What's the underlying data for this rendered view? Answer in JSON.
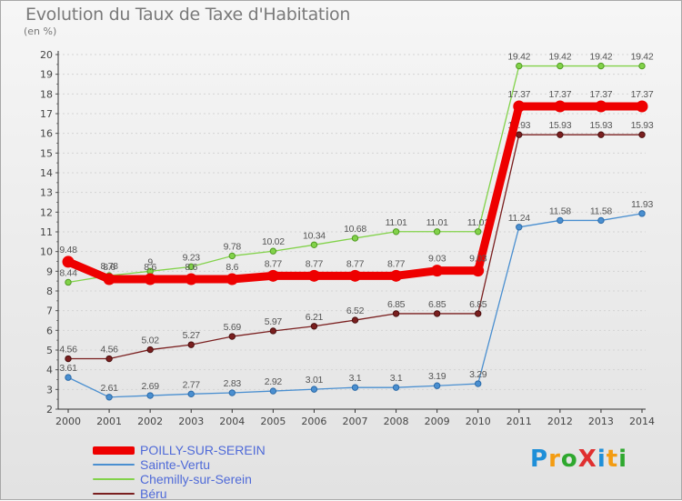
{
  "title": "Evolution du Taux de Taxe d'Habitation",
  "unit_label": "(en %)",
  "brand": {
    "text": "ProXiti",
    "letters": [
      "P",
      "r",
      "o",
      "X",
      "i",
      "t",
      "i"
    ],
    "letter_colors": [
      "#1e8fd8",
      "#f39c12",
      "#2ea82e",
      "#e03030",
      "#1e8fd8",
      "#f39c12",
      "#2ea82e"
    ]
  },
  "chart_data": {
    "type": "line",
    "title": "Evolution du Taux de Taxe d'Habitation",
    "ylabel": "(en %)",
    "xlabel": "",
    "ylim": [
      2,
      20
    ],
    "yticks": [
      "2",
      "3",
      "4",
      "5",
      "6",
      "7",
      "8",
      "9",
      "10",
      "11",
      "12",
      "13",
      "14",
      "15",
      "16",
      "17",
      "18",
      "19",
      "20"
    ],
    "x": [
      "2000",
      "2001",
      "2002",
      "2003",
      "2004",
      "2005",
      "2006",
      "2007",
      "2008",
      "2009",
      "2010",
      "2011",
      "2012",
      "2013",
      "2014"
    ],
    "grid": "horizontal",
    "series": [
      {
        "name": "POILLY-SUR-SEREIN",
        "color": "#ee0000",
        "values": [
          9.48,
          8.6,
          8.6,
          8.6,
          8.6,
          8.77,
          8.77,
          8.77,
          8.77,
          9.03,
          9.03,
          17.37,
          17.37,
          17.37,
          17.37
        ],
        "labels": [
          "9.48",
          "8.6",
          "8.6",
          "8.6",
          "8.6",
          "8.77",
          "8.77",
          "8.77",
          "8.77",
          "9.03",
          "9.03",
          "17.37",
          "17.37",
          "17.37",
          "17.37"
        ]
      },
      {
        "name": "Sainte-Vertu",
        "color": "#4a8fd0",
        "values": [
          3.61,
          2.61,
          2.69,
          2.77,
          2.83,
          2.92,
          3.01,
          3.1,
          3.1,
          3.19,
          3.29,
          11.24,
          11.58,
          11.58,
          11.93
        ],
        "labels": [
          "3.61",
          "2.61",
          "2.69",
          "2.77",
          "2.83",
          "2.92",
          "3.01",
          "3.1",
          "3.1",
          "3.19",
          "3.29",
          "11.24",
          "11.58",
          "11.58",
          "11.93"
        ]
      },
      {
        "name": "Chemilly-sur-Serein",
        "color": "#82d24a",
        "values": [
          8.44,
          8.78,
          9,
          9.23,
          9.78,
          10.02,
          10.34,
          10.68,
          11.01,
          11.01,
          11.01,
          19.42,
          19.42,
          19.42,
          19.42
        ],
        "labels": [
          "8.44",
          "8.78",
          "9",
          "9.23",
          "9.78",
          "10.02",
          "10.34",
          "10.68",
          "11.01",
          "11.01",
          "11.01",
          "19.42",
          "19.42",
          "19.42",
          "19.42"
        ]
      },
      {
        "name": "Béru",
        "color": "#7a1f1f",
        "values": [
          4.56,
          4.56,
          5.02,
          5.27,
          5.69,
          5.97,
          6.21,
          6.52,
          6.85,
          6.85,
          6.85,
          15.93,
          15.93,
          15.93,
          15.93
        ],
        "labels": [
          "4.56",
          "4.56",
          "5.02",
          "5.27",
          "5.69",
          "5.97",
          "6.21",
          "6.52",
          "6.85",
          "6.85",
          "6.85",
          "15.93",
          "15.93",
          "15.93",
          "15.93"
        ]
      }
    ],
    "legend": {
      "placement": "bottom-left",
      "entries": [
        "POILLY-SUR-SEREIN",
        "Sainte-Vertu",
        "Chemilly-sur-Serein",
        "Béru"
      ]
    }
  }
}
